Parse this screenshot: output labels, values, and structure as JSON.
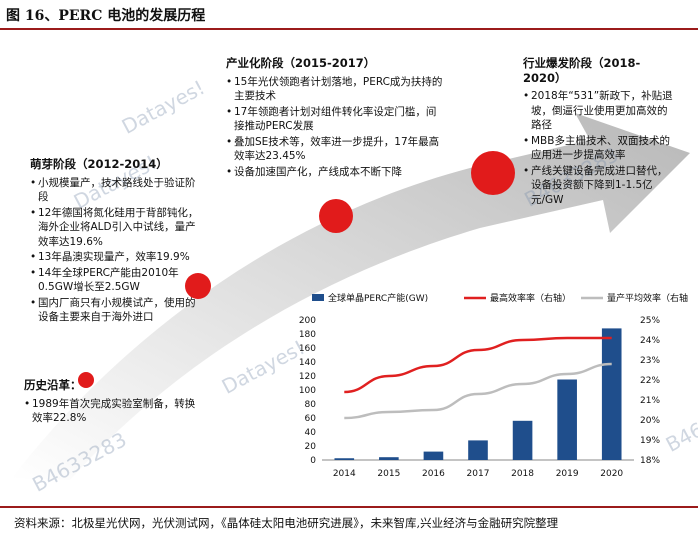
{
  "header": {
    "title": "图 16、PERC 电池的发展历程"
  },
  "footer": {
    "source": "资料来源：北极星光伏网，光伏测试网，《晶体硅太阳电池研究进展》，未来智库,兴业经济与金融研究院整理"
  },
  "stages": {
    "history": {
      "title": "历史沿革：",
      "items": [
        "1989年首次完成实验室制备，转换效率22.8%"
      ]
    },
    "sprout": {
      "title": "萌芽阶段（2012-2014）",
      "items": [
        "小规模量产，技术路线处于验证阶段",
        "12年德国将氮化硅用于背部钝化，海外企业将ALD引入中试线，量产效率达19.6%",
        "13年晶澳实现量产，效率19.9%",
        "14年全球PERC产能由2010年0.5GW增长至2.5GW",
        "国内厂商只有小规模试产，使用的设备主要来自于海外进口"
      ]
    },
    "industrial": {
      "title": "产业化阶段（2015-2017）",
      "items": [
        "15年光伏领跑者计划落地，PERC成为扶持的主要技术",
        "17年领跑者计划对组件转化率设定门槛，间接推动PERC发展",
        "叠加SE技术等，效率进一步提升，17年最高效率达23.45%",
        "设备加速国产化，产线成本不断下降"
      ]
    },
    "boom": {
      "title": "行业爆发阶段（2018-2020）",
      "items": [
        "2018年“531”新政下，补贴退坡，倒逼行业使用更加高效的路径",
        "MBB多主栅技术、双面技术的应用进一步提高效率",
        "产线关键设备完成进口替代，设备投资额下降到1-1.5亿元/GW"
      ]
    }
  },
  "watermarks": [
    "Datayes!",
    "Datayes!",
    "Datayes!",
    "B4633283",
    "B4633283",
    "B46"
  ],
  "chart_data": {
    "type": "bar",
    "categories": [
      "2014",
      "2015",
      "2016",
      "2017",
      "2018",
      "2019",
      "2020"
    ],
    "series": [
      {
        "name": "全球单晶PERC产能(GW)",
        "axis": "left",
        "type": "bar",
        "color": "#1f4e8c",
        "values": [
          2.5,
          4,
          12,
          28,
          56,
          115,
          188
        ]
      },
      {
        "name": "最高效率率（右轴）",
        "axis": "right",
        "type": "line",
        "color": "#e02020",
        "values": [
          21.4,
          22.2,
          22.7,
          23.5,
          24.0,
          24.1,
          24.1
        ]
      },
      {
        "name": "量产平均效率（右轴）",
        "axis": "right",
        "type": "line",
        "color": "#bdbdbd",
        "values": [
          20.1,
          20.4,
          20.5,
          21.3,
          21.8,
          22.3,
          22.8
        ]
      }
    ],
    "yleft": {
      "min": 0,
      "max": 200,
      "ticks": [
        "0",
        "20",
        "40",
        "60",
        "80",
        "100",
        "120",
        "140",
        "160",
        "180",
        "200"
      ]
    },
    "yright": {
      "min": 18,
      "max": 25,
      "ticks": [
        "18%",
        "19%",
        "20%",
        "21%",
        "22%",
        "23%",
        "24%",
        "25%"
      ]
    },
    "legend_position": "top"
  }
}
